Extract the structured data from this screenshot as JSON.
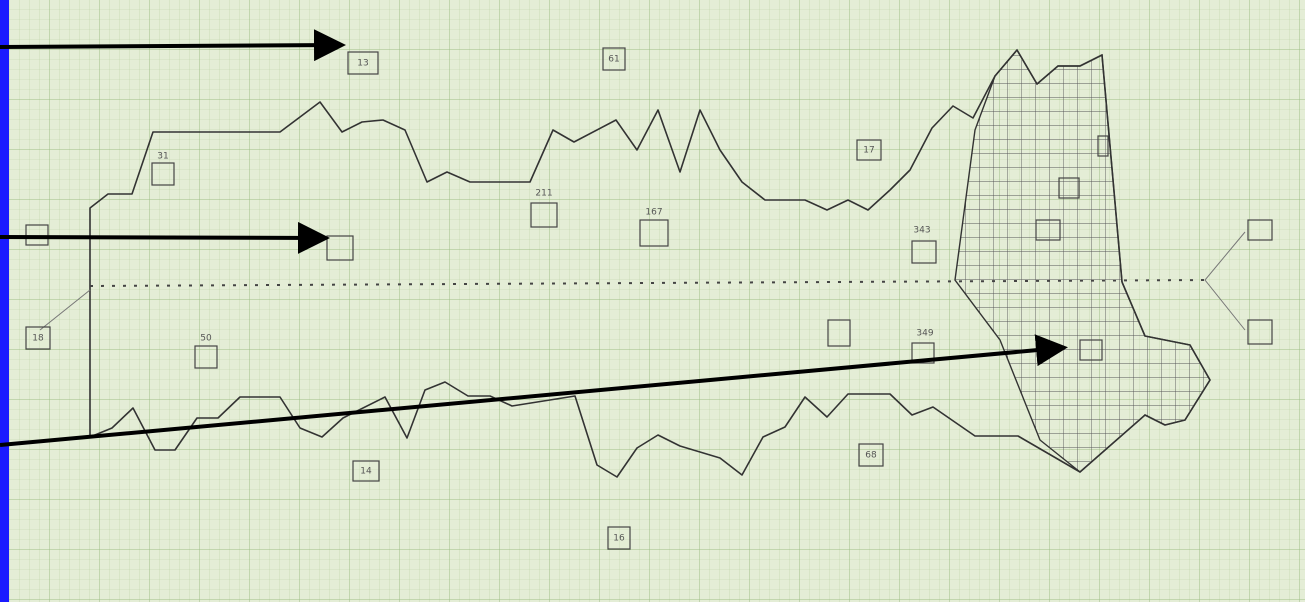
{
  "labels": [
    "13",
    "61",
    "31",
    "211",
    "167",
    "17",
    "50",
    "14",
    "16",
    "68",
    "343",
    "349",
    "18"
  ]
}
